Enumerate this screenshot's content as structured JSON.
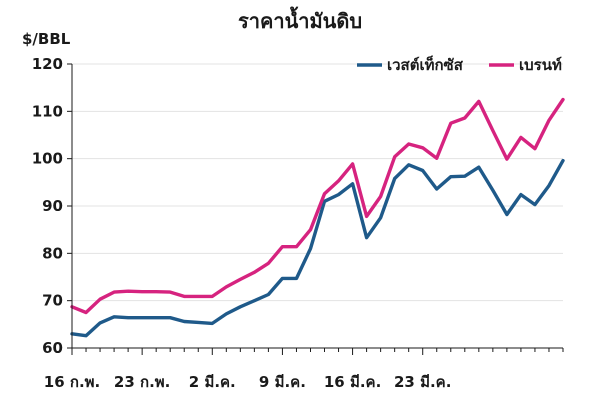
{
  "chart_data": {
    "type": "line",
    "title": "ราคาน้ำมันดิบ",
    "ylabel": "$/BBL",
    "xlabel": "",
    "ylim": [
      60,
      120
    ],
    "yticks": [
      60,
      70,
      80,
      90,
      100,
      110,
      120
    ],
    "grid": "horizontal",
    "legend_position": "top-right",
    "x_tick_labels": [
      {
        "index": 0,
        "label": "16 ก.พ."
      },
      {
        "index": 5,
        "label": "23 ก.พ."
      },
      {
        "index": 10,
        "label": "2 มี.ค."
      },
      {
        "index": 15,
        "label": "9 มี.ค."
      },
      {
        "index": 20,
        "label": "16 มี.ค."
      },
      {
        "index": 25,
        "label": "23 มี.ค."
      }
    ],
    "x_count": 29,
    "series": [
      {
        "name": "เวสต์เท็กซัส",
        "color": "#1f5a8a",
        "values": [
          63.0,
          62.6,
          65.3,
          66.6,
          66.4,
          66.4,
          66.4,
          66.4,
          65.6,
          65.4,
          65.2,
          67.2,
          68.7,
          70.0,
          71.3,
          74.7,
          74.7,
          81.0,
          91.0,
          92.4,
          94.7,
          83.3,
          87.5,
          95.8,
          98.7,
          97.5,
          93.6,
          96.2,
          96.3
        ]
      },
      {
        "name": "เบรนท์",
        "color": "#d6237f",
        "values": [
          68.7,
          67.5,
          70.3,
          71.8,
          72.0,
          71.9,
          71.9,
          71.8,
          70.9,
          70.9,
          70.9,
          72.9,
          74.5,
          76.0,
          77.9,
          81.4,
          81.4,
          85.0,
          92.6,
          95.3,
          98.9,
          87.8,
          92.0,
          100.4,
          103.1,
          102.3,
          100.1,
          107.5,
          108.6
        ]
      }
    ],
    "series_tail": [
      {
        "name": "เวสต์เท็กซัส",
        "values": [
          96.3,
          98.2,
          93.3,
          88.2,
          92.4,
          90.3,
          94.3,
          99.6
        ]
      },
      {
        "name": "เบรนท์",
        "values": [
          108.6,
          112.1,
          105.9,
          99.9,
          104.5,
          102.1,
          108.1,
          112.5
        ]
      }
    ]
  }
}
